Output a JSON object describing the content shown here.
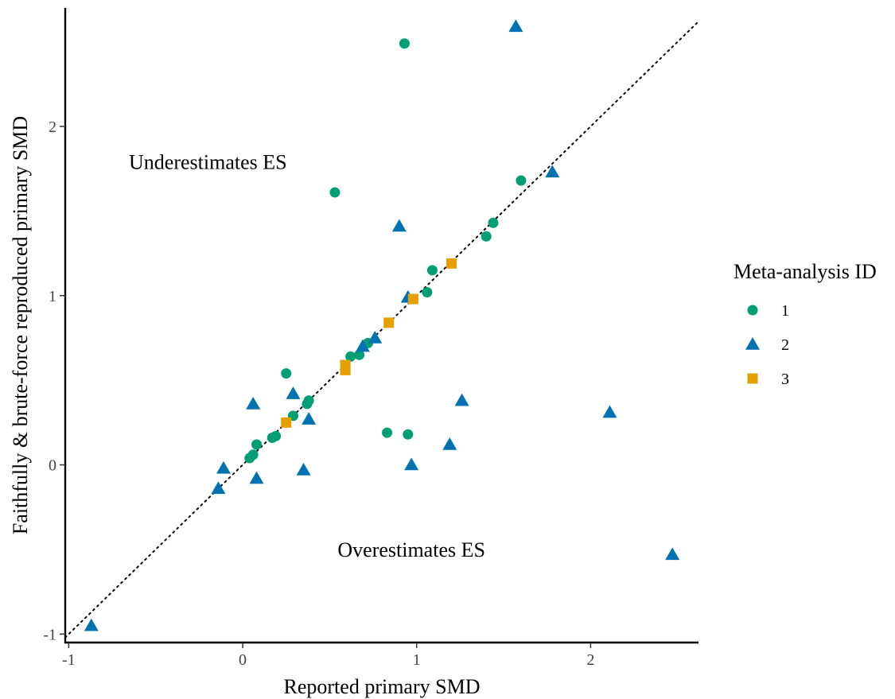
{
  "chart_data": {
    "type": "scatter",
    "xlabel": "Reported primary SMD",
    "ylabel": "Faithfully & brute-force reproduced primary SMD",
    "xlim": [
      -1.02,
      2.62
    ],
    "ylim": [
      -1.05,
      2.7
    ],
    "x_ticks": [
      -1,
      0,
      1,
      2
    ],
    "y_ticks": [
      -1,
      0,
      1,
      2
    ],
    "x_tick_labels": [
      "-1",
      "0",
      "1",
      "2"
    ],
    "y_tick_labels": [
      "-1",
      "0",
      "1",
      "2"
    ],
    "grid": false,
    "reference_line": {
      "type": "identity",
      "style": "dotted"
    },
    "annotations": [
      {
        "text": "Underestimates ES",
        "x": -0.2,
        "y": 1.79
      },
      {
        "text": "Overestimates ES",
        "x": 0.97,
        "y": -0.5
      }
    ],
    "legend": {
      "title": "Meta-analysis ID",
      "position": "right"
    },
    "series": [
      {
        "name": "1",
        "marker": "circle",
        "color": "#009E73",
        "points": [
          [
            0.93,
            2.49
          ],
          [
            1.6,
            1.68
          ],
          [
            0.53,
            1.61
          ],
          [
            1.44,
            1.43
          ],
          [
            1.4,
            1.35
          ],
          [
            1.09,
            1.15
          ],
          [
            1.06,
            1.02
          ],
          [
            0.72,
            0.72
          ],
          [
            0.67,
            0.65
          ],
          [
            0.62,
            0.64
          ],
          [
            0.25,
            0.54
          ],
          [
            0.38,
            0.38
          ],
          [
            0.37,
            0.36
          ],
          [
            0.29,
            0.29
          ],
          [
            0.19,
            0.17
          ],
          [
            0.17,
            0.16
          ],
          [
            0.08,
            0.12
          ],
          [
            0.06,
            0.06
          ],
          [
            0.04,
            0.04
          ],
          [
            0.83,
            0.19
          ],
          [
            0.95,
            0.18
          ]
        ]
      },
      {
        "name": "2",
        "marker": "triangle",
        "color": "#0072B2",
        "points": [
          [
            1.57,
            2.59
          ],
          [
            1.78,
            1.73
          ],
          [
            0.9,
            1.41
          ],
          [
            0.95,
            0.99
          ],
          [
            0.76,
            0.75
          ],
          [
            0.69,
            0.7
          ],
          [
            0.29,
            0.42
          ],
          [
            0.06,
            0.36
          ],
          [
            0.38,
            0.27
          ],
          [
            1.26,
            0.38
          ],
          [
            2.11,
            0.31
          ],
          [
            1.19,
            0.12
          ],
          [
            0.97,
            0.0
          ],
          [
            0.35,
            -0.03
          ],
          [
            -0.11,
            -0.02
          ],
          [
            0.08,
            -0.08
          ],
          [
            -0.14,
            -0.14
          ],
          [
            -0.87,
            -0.95
          ],
          [
            2.47,
            -0.53
          ]
        ]
      },
      {
        "name": "3",
        "marker": "square",
        "color": "#E69F00",
        "points": [
          [
            1.2,
            1.19
          ],
          [
            0.98,
            0.98
          ],
          [
            0.84,
            0.84
          ],
          [
            0.59,
            0.59
          ],
          [
            0.59,
            0.56
          ],
          [
            0.25,
            0.25
          ]
        ]
      }
    ]
  }
}
